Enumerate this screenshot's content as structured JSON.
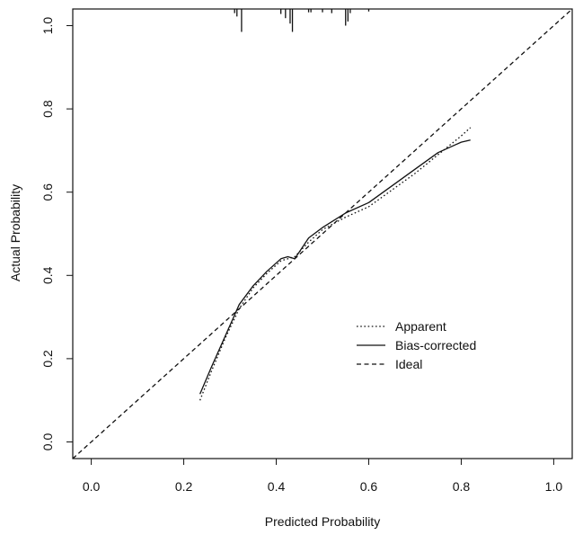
{
  "chart_data": {
    "type": "line",
    "xlabel": "Predicted Probability",
    "ylabel": "Actual Probability",
    "xlim": [
      -0.04,
      1.04
    ],
    "ylim": [
      -0.04,
      1.04
    ],
    "x_ticks": [
      "0.0",
      "0.2",
      "0.4",
      "0.6",
      "0.8",
      "1.0"
    ],
    "y_ticks": [
      "0.0",
      "0.2",
      "0.4",
      "0.6",
      "0.8",
      "1.0"
    ],
    "grid": false,
    "legend_position": "right-middle",
    "legend": [
      {
        "label": "Apparent",
        "style": "dotted"
      },
      {
        "label": "Bias-corrected",
        "style": "solid"
      },
      {
        "label": "Ideal",
        "style": "dashed"
      }
    ],
    "series": [
      {
        "name": "Apparent",
        "style": "dotted",
        "x": [
          0.235,
          0.26,
          0.29,
          0.32,
          0.35,
          0.38,
          0.41,
          0.44,
          0.47,
          0.5,
          0.55,
          0.6,
          0.65,
          0.7,
          0.75,
          0.8,
          0.82
        ],
        "y": [
          0.1,
          0.17,
          0.25,
          0.32,
          0.37,
          0.405,
          0.435,
          0.445,
          0.48,
          0.51,
          0.54,
          0.565,
          0.605,
          0.645,
          0.69,
          0.735,
          0.755
        ]
      },
      {
        "name": "Bias-corrected",
        "style": "solid",
        "x": [
          0.235,
          0.26,
          0.29,
          0.32,
          0.35,
          0.38,
          0.41,
          0.425,
          0.44,
          0.47,
          0.5,
          0.55,
          0.6,
          0.65,
          0.7,
          0.75,
          0.8,
          0.82
        ],
        "y": [
          0.115,
          0.18,
          0.255,
          0.33,
          0.375,
          0.41,
          0.44,
          0.445,
          0.44,
          0.49,
          0.515,
          0.55,
          0.575,
          0.615,
          0.655,
          0.695,
          0.72,
          0.725
        ]
      },
      {
        "name": "Ideal",
        "style": "dashed",
        "x": [
          -0.04,
          1.04
        ],
        "y": [
          -0.04,
          1.04
        ]
      }
    ],
    "rug": [
      {
        "x": 0.31,
        "length": 0.01
      },
      {
        "x": 0.315,
        "length": 0.018
      },
      {
        "x": 0.325,
        "length": 0.055
      },
      {
        "x": 0.41,
        "length": 0.012
      },
      {
        "x": 0.42,
        "length": 0.022
      },
      {
        "x": 0.43,
        "length": 0.035
      },
      {
        "x": 0.435,
        "length": 0.055
      },
      {
        "x": 0.47,
        "length": 0.008
      },
      {
        "x": 0.475,
        "length": 0.008
      },
      {
        "x": 0.5,
        "length": 0.008
      },
      {
        "x": 0.52,
        "length": 0.01
      },
      {
        "x": 0.55,
        "length": 0.04
      },
      {
        "x": 0.555,
        "length": 0.03
      },
      {
        "x": 0.56,
        "length": 0.01
      },
      {
        "x": 0.6,
        "length": 0.006
      }
    ]
  }
}
